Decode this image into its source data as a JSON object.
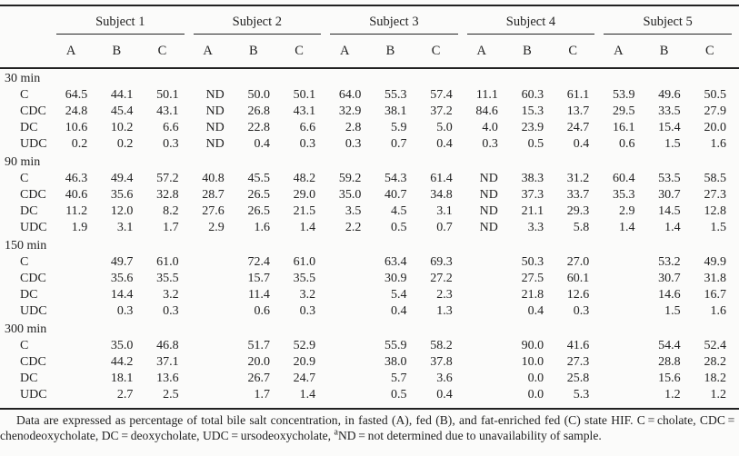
{
  "table": {
    "subjects": [
      "Subject 1",
      "Subject 2",
      "Subject 3",
      "Subject 4",
      "Subject 5"
    ],
    "conditions": [
      "A",
      "B",
      "C"
    ],
    "groups": [
      {
        "time": "30 min",
        "rows": [
          {
            "label": "C",
            "values": [
              "64.5",
              "44.1",
              "50.1",
              "ND",
              "50.0",
              "50.1",
              "64.0",
              "55.3",
              "57.4",
              "11.1",
              "60.3",
              "61.1",
              "53.9",
              "49.6",
              "50.5"
            ]
          },
          {
            "label": "CDC",
            "values": [
              "24.8",
              "45.4",
              "43.1",
              "ND",
              "26.8",
              "43.1",
              "32.9",
              "38.1",
              "37.2",
              "84.6",
              "15.3",
              "13.7",
              "29.5",
              "33.5",
              "27.9"
            ]
          },
          {
            "label": "DC",
            "values": [
              "10.6",
              "10.2",
              "6.6",
              "ND",
              "22.8",
              "6.6",
              "2.8",
              "5.9",
              "5.0",
              "4.0",
              "23.9",
              "24.7",
              "16.1",
              "15.4",
              "20.0"
            ]
          },
          {
            "label": "UDC",
            "values": [
              "0.2",
              "0.2",
              "0.3",
              "ND",
              "0.4",
              "0.3",
              "0.3",
              "0.7",
              "0.4",
              "0.3",
              "0.5",
              "0.4",
              "0.6",
              "1.5",
              "1.6"
            ]
          }
        ]
      },
      {
        "time": "90 min",
        "rows": [
          {
            "label": "C",
            "values": [
              "46.3",
              "49.4",
              "57.2",
              "40.8",
              "45.5",
              "48.2",
              "59.2",
              "54.3",
              "61.4",
              "ND",
              "38.3",
              "31.2",
              "60.4",
              "53.5",
              "58.5"
            ]
          },
          {
            "label": "CDC",
            "values": [
              "40.6",
              "35.6",
              "32.8",
              "28.7",
              "26.5",
              "29.0",
              "35.0",
              "40.7",
              "34.8",
              "ND",
              "37.3",
              "33.7",
              "35.3",
              "30.7",
              "27.3"
            ]
          },
          {
            "label": "DC",
            "values": [
              "11.2",
              "12.0",
              "8.2",
              "27.6",
              "26.5",
              "21.5",
              "3.5",
              "4.5",
              "3.1",
              "ND",
              "21.1",
              "29.3",
              "2.9",
              "14.5",
              "12.8"
            ]
          },
          {
            "label": "UDC",
            "values": [
              "1.9",
              "3.1",
              "1.7",
              "2.9",
              "1.6",
              "1.4",
              "2.2",
              "0.5",
              "0.7",
              "ND",
              "3.3",
              "5.8",
              "1.4",
              "1.4",
              "1.5"
            ]
          }
        ]
      },
      {
        "time": "150 min",
        "rows": [
          {
            "label": "C",
            "values": [
              "",
              "49.7",
              "61.0",
              "",
              "72.4",
              "61.0",
              "",
              "63.4",
              "69.3",
              "",
              "50.3",
              "27.0",
              "",
              "53.2",
              "49.9"
            ]
          },
          {
            "label": "CDC",
            "values": [
              "",
              "35.6",
              "35.5",
              "",
              "15.7",
              "35.5",
              "",
              "30.9",
              "27.2",
              "",
              "27.5",
              "60.1",
              "",
              "30.7",
              "31.8"
            ]
          },
          {
            "label": "DC",
            "values": [
              "",
              "14.4",
              "3.2",
              "",
              "11.4",
              "3.2",
              "",
              "5.4",
              "2.3",
              "",
              "21.8",
              "12.6",
              "",
              "14.6",
              "16.7"
            ]
          },
          {
            "label": "UDC",
            "values": [
              "",
              "0.3",
              "0.3",
              "",
              "0.6",
              "0.3",
              "",
              "0.4",
              "1.3",
              "",
              "0.4",
              "0.3",
              "",
              "1.5",
              "1.6"
            ]
          }
        ]
      },
      {
        "time": "300 min",
        "rows": [
          {
            "label": "C",
            "values": [
              "",
              "35.0",
              "46.8",
              "",
              "51.7",
              "52.9",
              "",
              "55.9",
              "58.2",
              "",
              "90.0",
              "41.6",
              "",
              "54.4",
              "52.4"
            ]
          },
          {
            "label": "CDC",
            "values": [
              "",
              "44.2",
              "37.1",
              "",
              "20.0",
              "20.9",
              "",
              "38.0",
              "37.8",
              "",
              "10.0",
              "27.3",
              "",
              "28.8",
              "28.2"
            ]
          },
          {
            "label": "DC",
            "values": [
              "",
              "18.1",
              "13.6",
              "",
              "26.7",
              "24.7",
              "",
              "5.7",
              "3.6",
              "",
              "0.0",
              "25.8",
              "",
              "15.6",
              "18.2"
            ]
          },
          {
            "label": "UDC",
            "values": [
              "",
              "2.7",
              "2.5",
              "",
              "1.7",
              "1.4",
              "",
              "0.5",
              "0.4",
              "",
              "0.0",
              "5.3",
              "",
              "1.2",
              "1.2"
            ]
          }
        ]
      }
    ]
  },
  "footnote": {
    "part1": "Data are expressed as percentage of total bile salt concentration, in fasted (A), fed (B), and fat-enriched fed (C) state HIF. C = cholate, CDC = chenodeoxycholate, DC = deoxycholate, UDC = ursodeoxycholate, ",
    "sup": "a",
    "part2": "ND = not determined due to unavailability of sample."
  }
}
